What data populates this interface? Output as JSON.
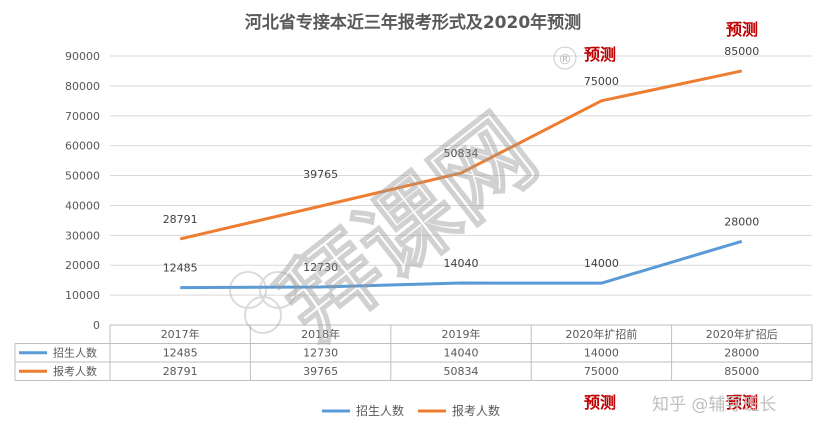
{
  "chart_data": {
    "type": "line",
    "title": "河北省专接本近三年报考形式及2020年预测",
    "categories": [
      "2017年",
      "2018年",
      "2019年",
      "2020年扩招前",
      "2020年扩招后"
    ],
    "ylim": [
      0,
      90000
    ],
    "yticks": [
      "0",
      "10000",
      "20000",
      "30000",
      "40000",
      "50000",
      "60000",
      "70000",
      "80000",
      "90000"
    ],
    "grid": true,
    "legend_position": "bottom",
    "series": [
      {
        "name": "招生人数",
        "color": "#5B9BD5",
        "values": [
          12485,
          12730,
          14040,
          14000,
          28000
        ]
      },
      {
        "name": "报考人数",
        "color": "#ED7D31",
        "values": [
          28791,
          39765,
          50834,
          75000,
          85000
        ]
      }
    ],
    "data_table": {
      "rows": [
        {
          "label": "招生人数",
          "cells": [
            "12485",
            "12730",
            "14040",
            "14000",
            "28000"
          ]
        },
        {
          "label": "报考人数",
          "cells": [
            "28791",
            "39765",
            "50834",
            "75000",
            "85000"
          ]
        }
      ]
    },
    "annotations": {
      "prediction_label": "预测",
      "prediction_color": "#C00000"
    }
  },
  "watermark": {
    "brand_text": "拜课网",
    "registered_mark": "®",
    "credit_text": "知乎 @辅导班长"
  }
}
